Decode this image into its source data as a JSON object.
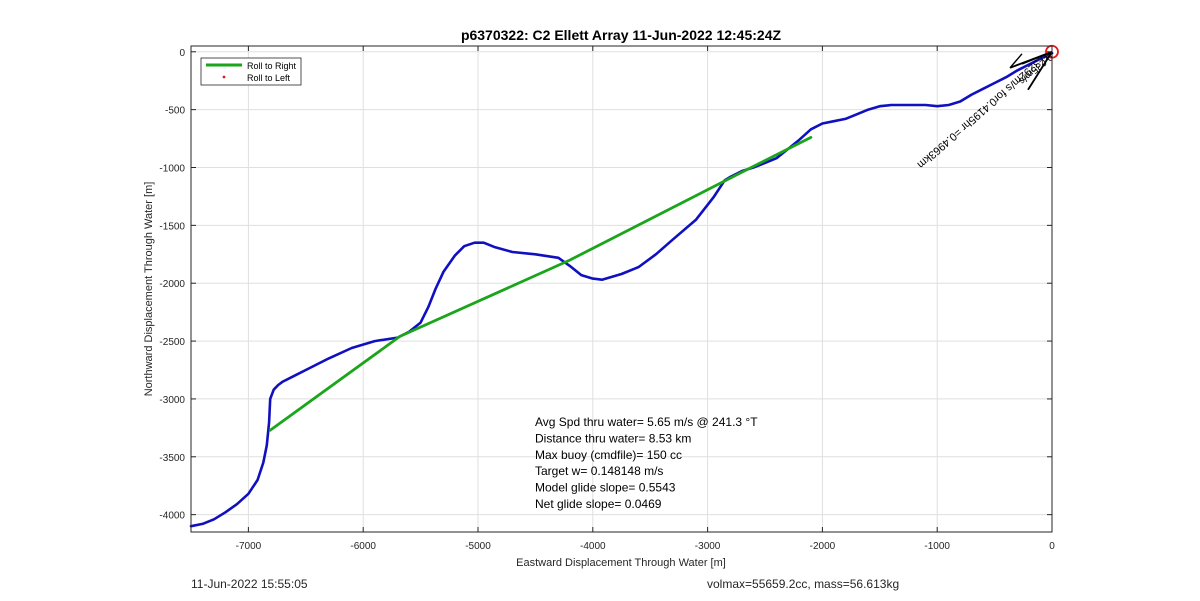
{
  "chart_data": {
    "type": "line",
    "title": "p6370322: C2 Ellett Array 11-Jun-2022 12:45:24Z",
    "xlabel": "Eastward Displacement Through Water [m]",
    "ylabel": "Northward Displacement Through Water [m]",
    "xlim": [
      -7500,
      0
    ],
    "ylim": [
      -4150,
      50
    ],
    "xticks": [
      -7000,
      -6000,
      -5000,
      -4000,
      -3000,
      -2000,
      -1000,
      0
    ],
    "yticks": [
      0,
      -500,
      -1000,
      -1500,
      -2000,
      -2500,
      -3000,
      -3500,
      -4000
    ],
    "grid": true,
    "legend": {
      "placement": "top-left",
      "entries": [
        {
          "label": "Roll to Right",
          "color": "#1aa51a",
          "style": "line"
        },
        {
          "label": "Roll to Left",
          "color": "#e61a1a",
          "style": "dot"
        }
      ]
    },
    "series": [
      {
        "color": "#1010c0",
        "x": [
          -7500,
          -7400,
          -7300,
          -7200,
          -7100,
          -7000,
          -6920,
          -6870,
          -6840,
          -6820,
          -6810,
          -6780,
          -6740,
          -6700,
          -6600,
          -6500,
          -6300,
          -6100,
          -5900,
          -5700,
          -5600,
          -5500,
          -5430,
          -5370,
          -5300,
          -5200,
          -5120,
          -5030,
          -4950,
          -4850,
          -4700,
          -4500,
          -4300,
          -4200,
          -4100,
          -4000,
          -3920,
          -3850,
          -3750,
          -3600,
          -3450,
          -3300,
          -3100,
          -2950,
          -2850,
          -2800,
          -2700,
          -2600,
          -2500,
          -2400,
          -2300,
          -2200,
          -2100,
          -2000,
          -1900,
          -1800,
          -1700,
          -1600,
          -1500,
          -1400,
          -1300,
          -1200,
          -1100,
          -1000,
          -900,
          -800,
          -700,
          -600,
          -500,
          -400,
          -300,
          -200,
          -100,
          0
        ],
        "y": [
          -4100,
          -4080,
          -4040,
          -3980,
          -3910,
          -3820,
          -3700,
          -3550,
          -3400,
          -3200,
          -3000,
          -2920,
          -2880,
          -2850,
          -2800,
          -2750,
          -2650,
          -2560,
          -2500,
          -2470,
          -2420,
          -2340,
          -2200,
          -2050,
          -1900,
          -1760,
          -1680,
          -1650,
          -1650,
          -1690,
          -1730,
          -1750,
          -1780,
          -1850,
          -1930,
          -1960,
          -1970,
          -1950,
          -1920,
          -1860,
          -1750,
          -1620,
          -1450,
          -1260,
          -1110,
          -1080,
          -1030,
          -1000,
          -960,
          -920,
          -840,
          -760,
          -670,
          -620,
          -600,
          -580,
          -540,
          -500,
          -470,
          -460,
          -460,
          -460,
          -460,
          -470,
          -460,
          -430,
          -370,
          -320,
          -270,
          -220,
          -160,
          -110,
          -60,
          -10
        ]
      },
      {
        "color": "#1aa51a",
        "x": [
          -6810,
          -5680,
          -4200,
          -2700,
          -2100
        ],
        "y": [
          -3270,
          -2460,
          -1800,
          -1040,
          -740
        ]
      }
    ],
    "annotations": [
      {
        "text": "Avg Spd thru water=  5.65 m/s @ 241.3 °T"
      },
      {
        "text": "Distance thru water=  8.53 km"
      },
      {
        "text": "Max buoy (cmdfile)= 150 cc"
      },
      {
        "text": "Target w= 0.148148 m/s"
      },
      {
        "text": "Model glide slope= 0.5543"
      },
      {
        "text": "Net glide slope= 0.0469"
      }
    ],
    "rotated_annotations": [
      {
        "text": "0.3292m/s for0.4195hr =0.4963km",
        "x": -90,
        "y": -30
      },
      {
        "text": "-0.235m/s",
        "x": -20,
        "y": -10
      }
    ],
    "end_marker": {
      "x": 0,
      "y": 0,
      "color": "#e61a1a"
    }
  },
  "footer": {
    "left": "11-Jun-2022 15:55:05",
    "right": "volmax=55659.2cc, mass=56.613kg"
  }
}
